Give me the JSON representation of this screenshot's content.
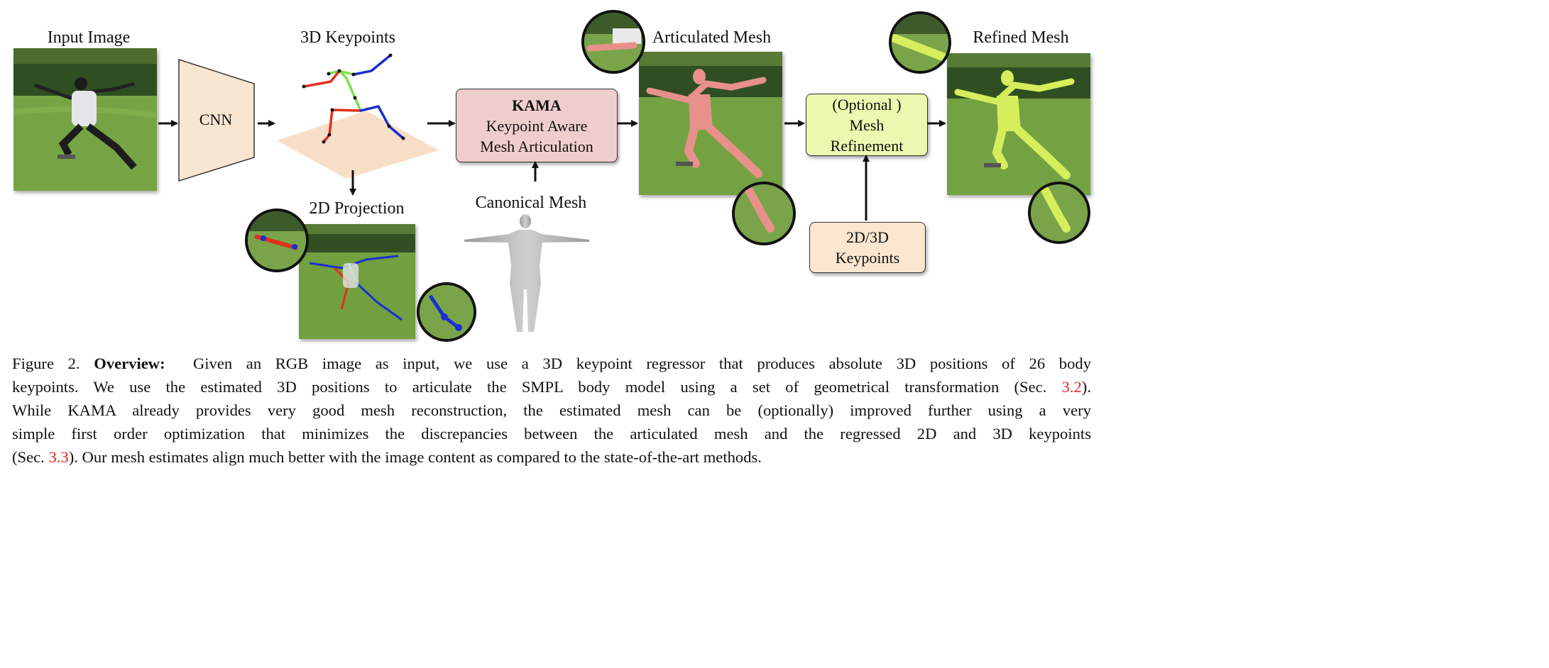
{
  "figure": {
    "labels": {
      "input_image": "Input Image",
      "cnn": "CNN",
      "keypoints_3d": "3D Keypoints",
      "projection_2d": "2D Projection",
      "canonical_mesh": "Canonical Mesh",
      "articulated_mesh": "Articulated Mesh",
      "refined_mesh": "Refined Mesh"
    },
    "kama_box": {
      "title": "KAMA",
      "line1": "Keypoint Aware",
      "line2": "Mesh Articulation"
    },
    "refinement_box": {
      "line1": "(Optional )",
      "line2": "Mesh",
      "line3": "Refinement"
    },
    "keypoints_box": {
      "line1": "2D/3D",
      "line2": "Keypoints"
    }
  },
  "caption": {
    "line1": {
      "figure_no": "Figure 2.",
      "bold": "Overview:",
      "text": "Given an RGB image as input, we use a 3D keypoint regressor that produces absolute 3D positions of 26 body"
    },
    "line2": {
      "text": "keypoints.  We use the estimated 3D positions to articulate the SMPL body model using a set of geometrical transformation (Sec.",
      "ref": "3.2",
      "tail": ")."
    },
    "line3": {
      "text": "While KAMA already provides very good mesh reconstruction, the estimated mesh can be (optionally) improved further using a very"
    },
    "line4": {
      "text": "simple first order optimization that minimizes the discrepancies between the articulated mesh and the regressed 2D and 3D keypoints"
    },
    "line5": {
      "head": "(Sec.",
      "ref": "3.3",
      "text": "). Our mesh estimates align much better with the image content as compared to the state-of-the-art methods."
    }
  },
  "colors": {
    "cnn_fill": "#f8e6d2",
    "kama_fill": "#f0cdcd",
    "refine_fill": "#ecf7b0",
    "keypoints_fill": "#fbe6d0",
    "plane_fill": "#f9dec7",
    "left_limb": "#e0301e",
    "right_limb": "#1a2fd0",
    "torso": "#7ee04a",
    "pink_mesh": "#e8918a",
    "lime_mesh": "#d6ee5c",
    "ref_color": "#e0261c"
  }
}
